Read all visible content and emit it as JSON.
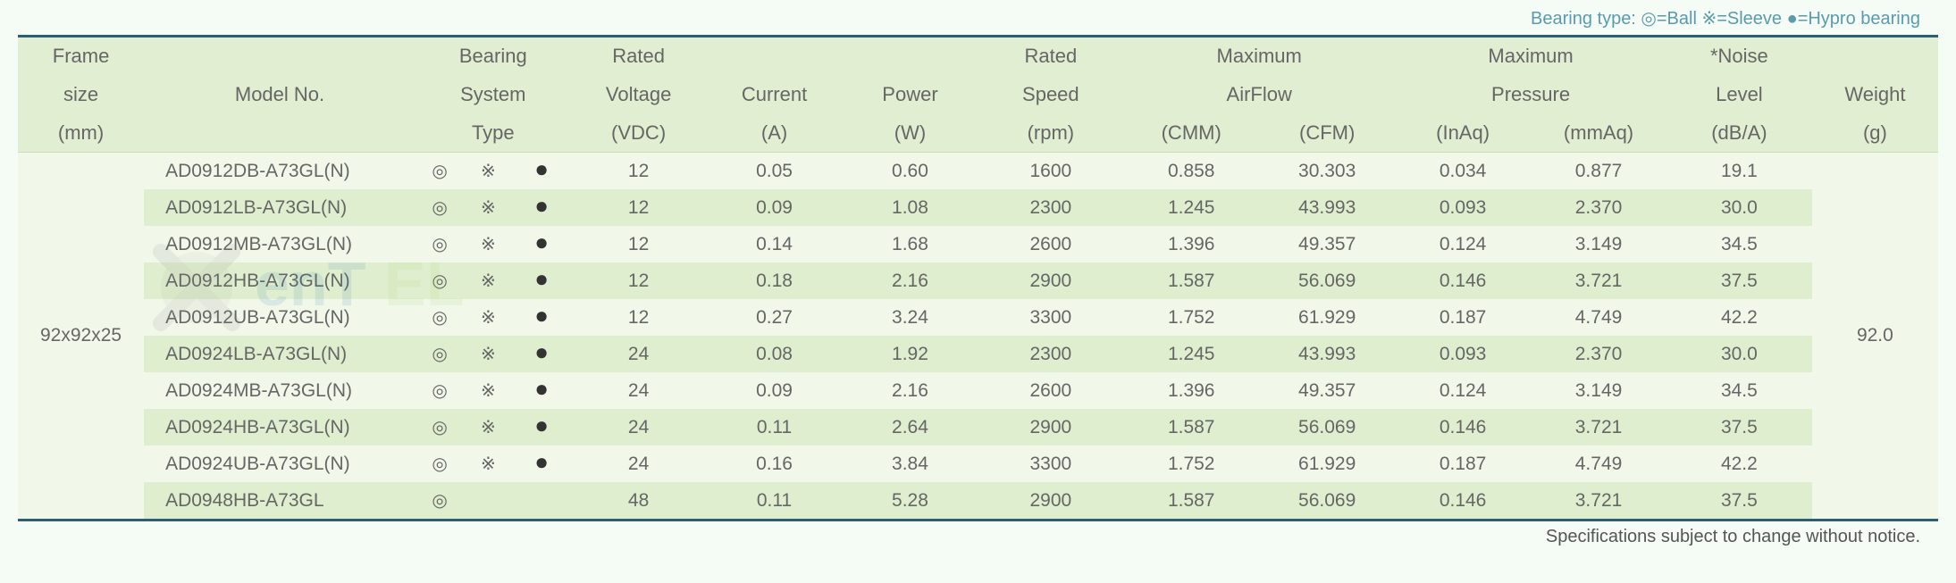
{
  "legend": "Bearing type:  ◎=Ball ※=Sleeve ●=Hypro bearing",
  "footer": "Specifications subject to change without notice.",
  "headers": {
    "frame": {
      "l1": "Frame",
      "l2": "size",
      "l3": "(mm)"
    },
    "model": {
      "l1": "",
      "l2": "Model No.",
      "l3": ""
    },
    "bearing": {
      "l1": "Bearing",
      "l2": "System",
      "l3": "Type"
    },
    "voltage": {
      "l1": "Rated",
      "l2": "Voltage",
      "l3": "(VDC)"
    },
    "current": {
      "l1": "",
      "l2": "Current",
      "l3": "(A)"
    },
    "power": {
      "l1": "",
      "l2": "Power",
      "l3": "(W)"
    },
    "speed": {
      "l1": "Rated",
      "l2": "Speed",
      "l3": "(rpm)"
    },
    "airflow": {
      "l1": "Maximum",
      "l2": "AirFlow",
      "cmm": "(CMM)",
      "cfm": "(CFM)"
    },
    "pressure": {
      "l1": "Maximum",
      "l2": "Pressure",
      "inaq": "(InAq)",
      "mmaq": "(mmAq)"
    },
    "noise": {
      "l1": "*Noise",
      "l2": "Level",
      "l3": "(dB/A)"
    },
    "weight": {
      "l1": "",
      "l2": "Weight",
      "l3": "(g)"
    }
  },
  "frame_size": "92x92x25",
  "weight": "92.0",
  "bearing_icons": {
    "ball": "◎",
    "sleeve": "※",
    "hypro": "●"
  },
  "rows": [
    {
      "model": "AD0912DB-A73GL(N)",
      "b": [
        "ball",
        "sleeve",
        "hypro"
      ],
      "v": "12",
      "a": "0.05",
      "w": "0.60",
      "rpm": "1600",
      "cmm": "0.858",
      "cfm": "30.303",
      "inaq": "0.034",
      "mmaq": "0.877",
      "db": "19.1"
    },
    {
      "model": "AD0912LB-A73GL(N)",
      "b": [
        "ball",
        "sleeve",
        "hypro"
      ],
      "v": "12",
      "a": "0.09",
      "w": "1.08",
      "rpm": "2300",
      "cmm": "1.245",
      "cfm": "43.993",
      "inaq": "0.093",
      "mmaq": "2.370",
      "db": "30.0"
    },
    {
      "model": "AD0912MB-A73GL(N)",
      "b": [
        "ball",
        "sleeve",
        "hypro"
      ],
      "v": "12",
      "a": "0.14",
      "w": "1.68",
      "rpm": "2600",
      "cmm": "1.396",
      "cfm": "49.357",
      "inaq": "0.124",
      "mmaq": "3.149",
      "db": "34.5"
    },
    {
      "model": "AD0912HB-A73GL(N)",
      "b": [
        "ball",
        "sleeve",
        "hypro"
      ],
      "v": "12",
      "a": "0.18",
      "w": "2.16",
      "rpm": "2900",
      "cmm": "1.587",
      "cfm": "56.069",
      "inaq": "0.146",
      "mmaq": "3.721",
      "db": "37.5"
    },
    {
      "model": "AD0912UB-A73GL(N)",
      "b": [
        "ball",
        "sleeve",
        "hypro"
      ],
      "v": "12",
      "a": "0.27",
      "w": "3.24",
      "rpm": "3300",
      "cmm": "1.752",
      "cfm": "61.929",
      "inaq": "0.187",
      "mmaq": "4.749",
      "db": "42.2"
    },
    {
      "model": "AD0924LB-A73GL(N)",
      "b": [
        "ball",
        "sleeve",
        "hypro"
      ],
      "v": "24",
      "a": "0.08",
      "w": "1.92",
      "rpm": "2300",
      "cmm": "1.245",
      "cfm": "43.993",
      "inaq": "0.093",
      "mmaq": "2.370",
      "db": "30.0"
    },
    {
      "model": "AD0924MB-A73GL(N)",
      "b": [
        "ball",
        "sleeve",
        "hypro"
      ],
      "v": "24",
      "a": "0.09",
      "w": "2.16",
      "rpm": "2600",
      "cmm": "1.396",
      "cfm": "49.357",
      "inaq": "0.124",
      "mmaq": "3.149",
      "db": "34.5"
    },
    {
      "model": "AD0924HB-A73GL(N)",
      "b": [
        "ball",
        "sleeve",
        "hypro"
      ],
      "v": "24",
      "a": "0.11",
      "w": "2.64",
      "rpm": "2900",
      "cmm": "1.587",
      "cfm": "56.069",
      "inaq": "0.146",
      "mmaq": "3.721",
      "db": "37.5"
    },
    {
      "model": "AD0924UB-A73GL(N)",
      "b": [
        "ball",
        "sleeve",
        "hypro"
      ],
      "v": "24",
      "a": "0.16",
      "w": "3.84",
      "rpm": "3300",
      "cmm": "1.752",
      "cfm": "61.929",
      "inaq": "0.187",
      "mmaq": "4.749",
      "db": "42.2"
    },
    {
      "model": "AD0948HB-A73GL",
      "b": [
        "ball"
      ],
      "v": "48",
      "a": "0.11",
      "w": "5.28",
      "rpm": "2900",
      "cmm": "1.587",
      "cfm": "56.069",
      "inaq": "0.146",
      "mmaq": "3.721",
      "db": "37.5"
    }
  ],
  "styling": {
    "border_color": "#2b5f75",
    "header_bg": "#e1eed1",
    "row_even_bg": "#dfeece",
    "row_odd_bg": "#f1f8ea",
    "page_bg": "#f5fbf5",
    "text_color": "#666666",
    "legend_color": "#5a9bb0",
    "font_size_body": 21,
    "font_size_header": 22
  }
}
